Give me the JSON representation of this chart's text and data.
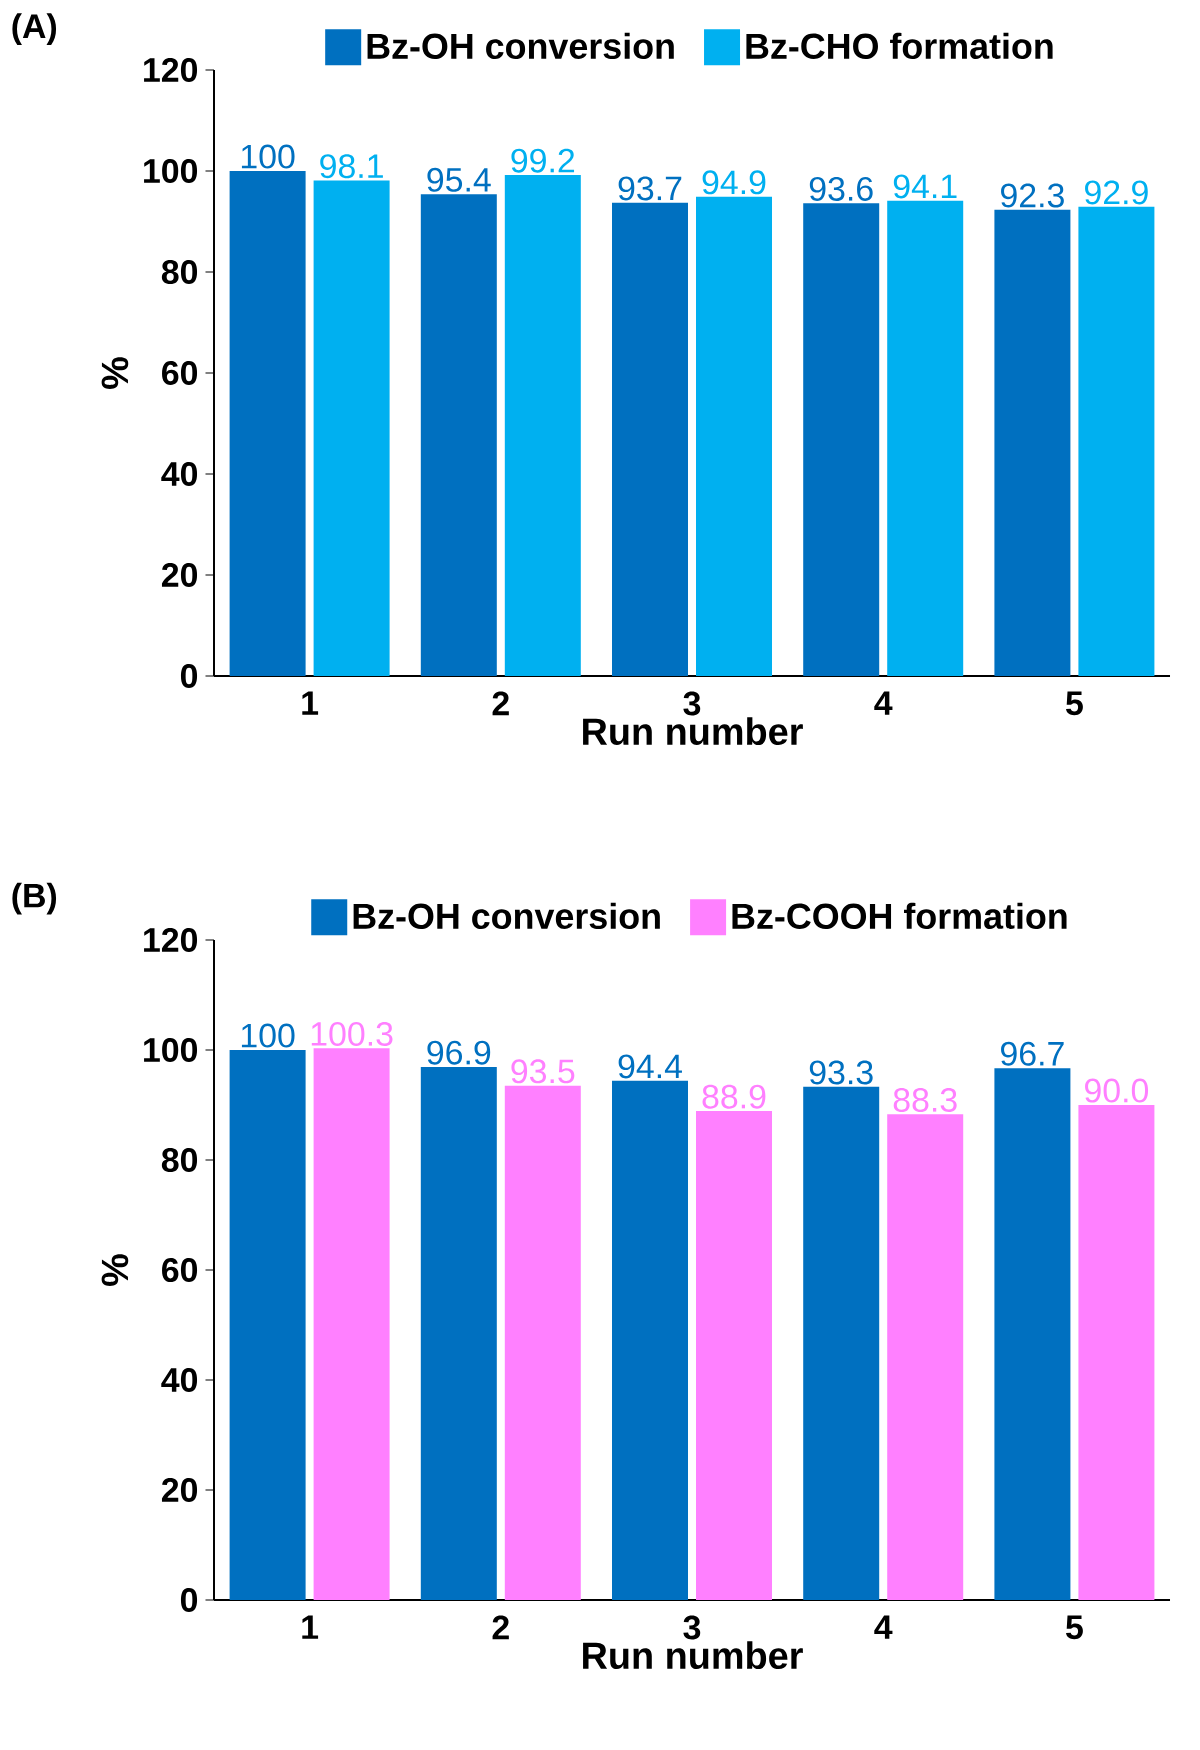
{
  "chart_data": [
    {
      "type": "bar",
      "title": "(A)",
      "xlabel": "Run number",
      "ylabel": "%",
      "categories": [
        "1",
        "2",
        "3",
        "4",
        "5"
      ],
      "ylim": [
        0,
        120
      ],
      "yticks": [
        0,
        20,
        40,
        60,
        80,
        100,
        120
      ],
      "legend": "top",
      "grid": false,
      "series": [
        {
          "name": "Bz-OH conversion",
          "color": "#0070c0",
          "values": [
            100,
            95.4,
            93.7,
            93.6,
            92.3
          ],
          "value_labels": [
            "100",
            "95.4",
            "93.7",
            "93.6",
            "92.3"
          ]
        },
        {
          "name": "Bz-CHO formation",
          "color": "#00b0f0",
          "values": [
            98.1,
            99.2,
            94.9,
            94.1,
            92.9
          ],
          "value_labels": [
            "98.1",
            "99.2",
            "94.9",
            "94.1",
            "92.9"
          ]
        }
      ]
    },
    {
      "type": "bar",
      "title": "(B)",
      "xlabel": "Run number",
      "ylabel": "%",
      "categories": [
        "1",
        "2",
        "3",
        "4",
        "5"
      ],
      "ylim": [
        0,
        120
      ],
      "yticks": [
        0,
        20,
        40,
        60,
        80,
        100,
        120
      ],
      "legend": "top",
      "grid": false,
      "series": [
        {
          "name": "Bz-OH conversion",
          "color": "#0070c0",
          "values": [
            100,
            96.9,
            94.4,
            93.3,
            96.7
          ],
          "value_labels": [
            "100",
            "96.9",
            "94.4",
            "93.3",
            "96.7"
          ]
        },
        {
          "name": "Bz-COOH formation",
          "color": "#ff80ff",
          "values": [
            100.3,
            93.5,
            88.9,
            88.3,
            90.0
          ],
          "value_labels": [
            "100.3",
            "93.5",
            "88.9",
            "88.3",
            "90.0"
          ]
        }
      ]
    }
  ]
}
